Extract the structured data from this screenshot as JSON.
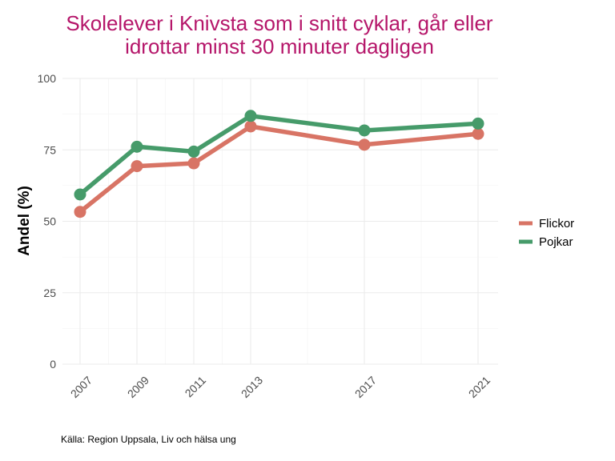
{
  "chart_data": {
    "type": "line",
    "title": [
      "Skolelever i Knivsta som i snitt cyklar, går eller",
      "idrottar minst 30 minuter dagligen"
    ],
    "xlabel": "",
    "ylabel": "Andel (%)",
    "x": [
      2007,
      2009,
      2011,
      2013,
      2017,
      2021
    ],
    "x_tick_labels": [
      "2007",
      "2009",
      "2011",
      "2013",
      "2017",
      "2021"
    ],
    "xlim": [
      2007,
      2021
    ],
    "ylim": [
      0,
      100
    ],
    "y_ticks": [
      0,
      25,
      50,
      75,
      100
    ],
    "y_tick_labels": [
      "0",
      "25",
      "50",
      "75",
      "100"
    ],
    "grid": true,
    "legend_position": "right",
    "series": [
      {
        "name": "Flickor",
        "color": "#d87465",
        "values": [
          53.3,
          69.3,
          70.3,
          83.2,
          76.8,
          80.6
        ]
      },
      {
        "name": "Pojkar",
        "color": "#469b6a",
        "values": [
          59.4,
          76.1,
          74.4,
          86.9,
          81.8,
          84.2
        ]
      }
    ],
    "caption": "Källa: Region Uppsala, Liv och hälsa ung",
    "title_color": "#b5166a"
  }
}
